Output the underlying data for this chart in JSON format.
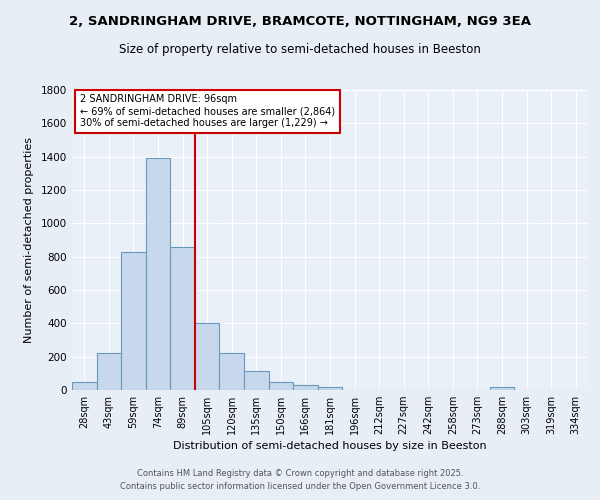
{
  "title_line1": "2, SANDRINGHAM DRIVE, BRAMCOTE, NOTTINGHAM, NG9 3EA",
  "title_line2": "Size of property relative to semi-detached houses in Beeston",
  "xlabel": "Distribution of semi-detached houses by size in Beeston",
  "ylabel": "Number of semi-detached properties",
  "bin_labels": [
    "28sqm",
    "43sqm",
    "59sqm",
    "74sqm",
    "89sqm",
    "105sqm",
    "120sqm",
    "135sqm",
    "150sqm",
    "166sqm",
    "181sqm",
    "196sqm",
    "212sqm",
    "227sqm",
    "242sqm",
    "258sqm",
    "273sqm",
    "288sqm",
    "303sqm",
    "319sqm",
    "334sqm"
  ],
  "bin_counts": [
    50,
    220,
    830,
    1390,
    860,
    400,
    225,
    115,
    50,
    30,
    20,
    3,
    3,
    0,
    0,
    0,
    0,
    20,
    0,
    0,
    0
  ],
  "bar_color": "#c8d8ec",
  "bar_edge_color": "#6699bb",
  "vline_color": "#cc0000",
  "vline_x": 4.5,
  "annotation_text_line1": "2 SANDRINGHAM DRIVE: 96sqm",
  "annotation_text_line2": "← 69% of semi-detached houses are smaller (2,864)",
  "annotation_text_line3": "30% of semi-detached houses are larger (1,229) →",
  "annotation_box_color": "#ffffff",
  "annotation_box_edge": "#cc0000",
  "ylim": [
    0,
    1800
  ],
  "yticks": [
    0,
    200,
    400,
    600,
    800,
    1000,
    1200,
    1400,
    1600,
    1800
  ],
  "background_color": "#e8eef5",
  "plot_bg_color": "#eaf0f8",
  "grid_color": "#ffffff",
  "footer_line1": "Contains HM Land Registry data © Crown copyright and database right 2025.",
  "footer_line2": "Contains public sector information licensed under the Open Government Licence 3.0."
}
